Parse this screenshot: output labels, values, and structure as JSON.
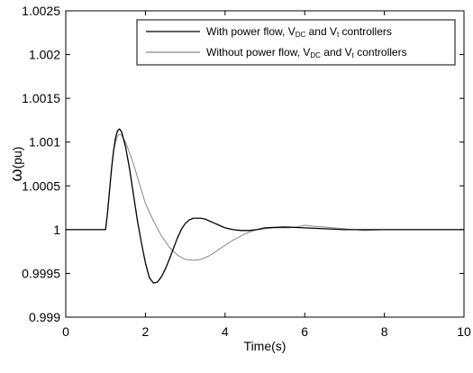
{
  "chart_data": {
    "type": "line",
    "title": "",
    "xlabel": "Time(s)",
    "ylabel": {
      "symbol": "ω",
      "unit": "(pu)"
    },
    "xlim": [
      0,
      10
    ],
    "ylim": [
      0.999,
      1.0025
    ],
    "x_ticks": [
      0,
      2,
      4,
      6,
      8,
      10
    ],
    "x_tick_labels": [
      "0",
      "2",
      "4",
      "6",
      "8",
      "10"
    ],
    "y_ticks": [
      0.999,
      0.9995,
      1.0,
      1.0005,
      1.001,
      1.0015,
      1.002,
      1.0025
    ],
    "y_tick_labels": [
      "0.999",
      "0.9995",
      "1",
      "1.0005",
      "1.001",
      "1.0015",
      "1.002",
      "1.0025"
    ],
    "grid": false,
    "legend_position": "top-right",
    "series": [
      {
        "name": {
          "pre": "With power flow, V",
          "sub1": "DC",
          "mid": " and V",
          "sub2": "t",
          "post": " controllers"
        },
        "color": "#000000",
        "dashed": false,
        "x": [
          0,
          1.0,
          1.05,
          1.1,
          1.15,
          1.2,
          1.25,
          1.3,
          1.35,
          1.4,
          1.5,
          1.6,
          1.7,
          1.8,
          1.9,
          2.0,
          2.1,
          2.2,
          2.3,
          2.4,
          2.5,
          2.6,
          2.7,
          2.8,
          2.9,
          3.0,
          3.1,
          3.2,
          3.3,
          3.4,
          3.5,
          3.6,
          3.7,
          3.8,
          3.9,
          4.0,
          4.2,
          4.4,
          4.6,
          4.8,
          5.0,
          5.5,
          6.0,
          6.5,
          7.0,
          8.0,
          9.0,
          10.0
        ],
        "y": [
          1.0,
          1.0,
          1.0002,
          1.00045,
          1.0007,
          1.0009,
          1.00105,
          1.00113,
          1.00115,
          1.00112,
          1.00095,
          1.0007,
          1.0004,
          1.0001,
          0.99985,
          0.99962,
          0.99945,
          0.99939,
          0.9994,
          0.99946,
          0.99955,
          0.99966,
          0.99978,
          0.9999,
          1.0,
          1.00007,
          1.00011,
          1.00013,
          1.00013,
          1.00013,
          1.00012,
          1.0001,
          1.00008,
          1.00006,
          1.00004,
          1.00002,
          1.0,
          0.99999,
          0.99999,
          1.0,
          1.00002,
          1.00003,
          1.00002,
          1.00001,
          1.0,
          1.0,
          1.0,
          1.0
        ]
      },
      {
        "name": {
          "pre": "Without power flow, V",
          "sub1": "DC",
          "mid": " and V",
          "sub2": "t",
          "post": " controllers"
        },
        "color": "#888888",
        "dashed": false,
        "x": [
          0,
          1.0,
          1.05,
          1.1,
          1.15,
          1.2,
          1.25,
          1.3,
          1.35,
          1.4,
          1.5,
          1.6,
          1.7,
          1.8,
          1.9,
          2.0,
          2.2,
          2.4,
          2.6,
          2.8,
          3.0,
          3.2,
          3.4,
          3.6,
          3.8,
          4.0,
          4.2,
          4.4,
          4.6,
          4.8,
          5.0,
          5.2,
          5.4,
          5.6,
          5.8,
          6.0,
          6.2,
          6.5,
          7.0,
          7.5,
          8.0,
          9.0,
          10.0
        ],
        "y": [
          1.0,
          1.0,
          1.0002,
          1.00045,
          1.0007,
          1.0009,
          1.001,
          1.00107,
          1.00109,
          1.00108,
          1.001,
          1.00088,
          1.00075,
          1.0006,
          1.00045,
          1.0003,
          1.0001,
          0.99993,
          0.9998,
          0.99971,
          0.99966,
          0.99965,
          0.99966,
          0.9997,
          0.99976,
          0.99982,
          0.99988,
          0.99993,
          0.99997,
          1.0,
          1.00001,
          1.00002,
          1.00002,
          1.00002,
          1.00003,
          1.00005,
          1.00004,
          1.00003,
          1.00001,
          0.99999,
          1.0,
          1.0,
          1.0
        ]
      }
    ]
  }
}
